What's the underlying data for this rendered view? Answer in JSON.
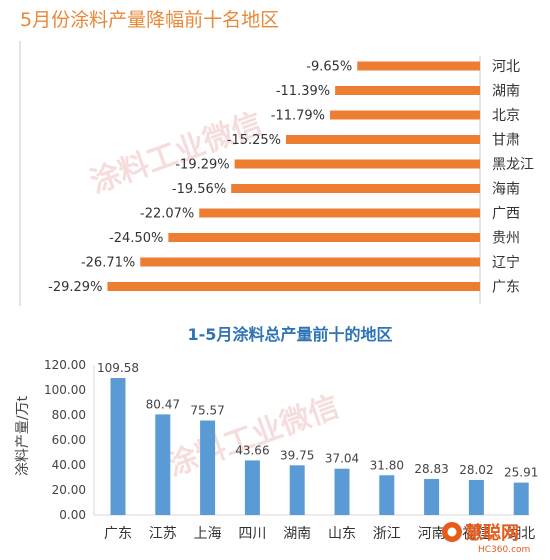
{
  "chart_data": [
    {
      "type": "bar",
      "orientation": "horizontal",
      "title": "5月份涂料产量降幅前十名地区",
      "categories": [
        "河北",
        "湖南",
        "北京",
        "甘肃",
        "黑龙江",
        "海南",
        "广西",
        "贵州",
        "辽宁",
        "广东"
      ],
      "values": [
        -9.65,
        -11.39,
        -11.79,
        -15.25,
        -19.29,
        -19.56,
        -22.07,
        -24.5,
        -26.71,
        -29.29
      ],
      "data_labels": [
        "-9.65%",
        "-11.39%",
        "-11.79%",
        "-15.25%",
        "-19.29%",
        "-19.56%",
        "-22.07%",
        "-24.50%",
        "-26.71%",
        "-29.29%"
      ],
      "xlim": [
        -30,
        0
      ],
      "color": "#ed7d31",
      "grid": false,
      "legend": "none"
    },
    {
      "type": "bar",
      "orientation": "vertical",
      "title": "1-5月涂料总产量前十的地区",
      "categories": [
        "广东",
        "江苏",
        "上海",
        "四川",
        "湖南",
        "山东",
        "浙江",
        "河南",
        "福建",
        "湖北"
      ],
      "values": [
        109.58,
        80.47,
        75.57,
        43.66,
        39.75,
        37.04,
        31.8,
        28.83,
        28.02,
        25.91
      ],
      "data_labels": [
        "109.58",
        "80.47",
        "75.57",
        "43.66",
        "39.75",
        "37.04",
        "31.80",
        "28.83",
        "28.02",
        "25.91"
      ],
      "ylabel": "涂料产量/万t",
      "ylim": [
        0,
        120
      ],
      "yticks": [
        "0.00",
        "20.00",
        "40.00",
        "60.00",
        "80.00",
        "100.00",
        "120.00"
      ],
      "color": "#5b9bd5",
      "grid": false,
      "legend": "none"
    }
  ],
  "watermarks": {
    "text": "涂料工业微信"
  },
  "logo": {
    "name": "慧聪网",
    "url_text": "HC360.com",
    "icon": "hc360-logo-icon"
  },
  "colors": {
    "title1": "#e8893a",
    "title2": "#2e74b5",
    "bar1": "#ed7d31",
    "bar2": "#5b9bd5"
  }
}
